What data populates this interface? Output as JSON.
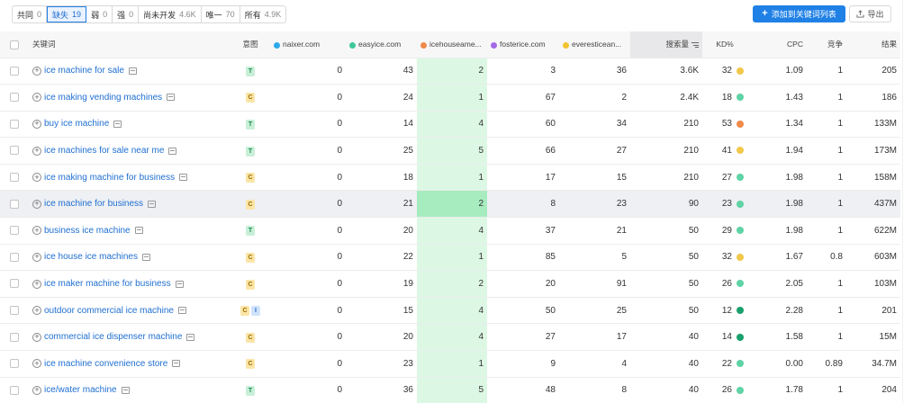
{
  "filters": [
    {
      "label": "共同",
      "count": "0"
    },
    {
      "label": "缺失",
      "count": "19",
      "active": true
    },
    {
      "label": "弱",
      "count": "0"
    },
    {
      "label": "强",
      "count": "0"
    },
    {
      "label": "尚未开发",
      "count": "4.6K"
    },
    {
      "label": "唯一",
      "count": "70"
    },
    {
      "label": "所有",
      "count": "4.9K"
    }
  ],
  "toolbar": {
    "add_label": "添加到关键词列表",
    "export_label": "导出"
  },
  "columns": {
    "keyword": "关键词",
    "intent": "意图",
    "domains": [
      {
        "name": "naixer.com",
        "color": "#2da8e8"
      },
      {
        "name": "easyice.com",
        "color": "#3ec89a"
      },
      {
        "name": "icehouseame...",
        "color": "#f08a4b"
      },
      {
        "name": "fosterice.com",
        "color": "#a46ae8"
      },
      {
        "name": "everesticean...",
        "color": "#f2c230"
      }
    ],
    "volume": "搜索量",
    "kd": "KD%",
    "cpc": "CPC",
    "competition": "竞争",
    "results": "结果"
  },
  "kd_colors": {
    "easy": "#5fd3a5",
    "very_easy": "#1aa06d",
    "possible": "#f2c84b",
    "difficult": "#f08a4b"
  },
  "rows": [
    {
      "keyword": "ice machine for sale",
      "intents": [
        "T"
      ],
      "naixer": "0",
      "easyice": "43",
      "icehouse": "2",
      "fosterice": "3",
      "everest": "36",
      "volume": "3.6K",
      "kd": "32",
      "kd_level": "possible",
      "cpc": "1.09",
      "com": "1",
      "results": "205"
    },
    {
      "keyword": "ice making vending machines",
      "intents": [
        "C"
      ],
      "naixer": "0",
      "easyice": "24",
      "icehouse": "1",
      "fosterice": "67",
      "everest": "2",
      "volume": "2.4K",
      "kd": "18",
      "kd_level": "easy",
      "cpc": "1.43",
      "com": "1",
      "results": "186"
    },
    {
      "keyword": "buy ice machine",
      "intents": [
        "T"
      ],
      "naixer": "0",
      "easyice": "14",
      "icehouse": "4",
      "fosterice": "60",
      "everest": "34",
      "volume": "210",
      "kd": "53",
      "kd_level": "difficult",
      "cpc": "1.34",
      "com": "1",
      "results": "133M"
    },
    {
      "keyword": "ice machines for sale near me",
      "intents": [
        "T"
      ],
      "naixer": "0",
      "easyice": "25",
      "icehouse": "5",
      "fosterice": "66",
      "everest": "27",
      "volume": "210",
      "kd": "41",
      "kd_level": "possible",
      "cpc": "1.94",
      "com": "1",
      "results": "173M"
    },
    {
      "keyword": "ice making machine for business",
      "intents": [
        "C"
      ],
      "naixer": "0",
      "easyice": "18",
      "icehouse": "1",
      "fosterice": "17",
      "everest": "15",
      "volume": "210",
      "kd": "27",
      "kd_level": "easy",
      "cpc": "1.98",
      "com": "1",
      "results": "158M"
    },
    {
      "keyword": "ice machine for business",
      "intents": [
        "C"
      ],
      "naixer": "0",
      "easyice": "21",
      "icehouse": "2",
      "fosterice": "8",
      "everest": "23",
      "volume": "90",
      "kd": "23",
      "kd_level": "easy",
      "cpc": "1.98",
      "com": "1",
      "results": "437M",
      "highlight": true
    },
    {
      "keyword": "business ice machine",
      "intents": [
        "T"
      ],
      "naixer": "0",
      "easyice": "20",
      "icehouse": "4",
      "fosterice": "37",
      "everest": "21",
      "volume": "50",
      "kd": "29",
      "kd_level": "easy",
      "cpc": "1.98",
      "com": "1",
      "results": "622M"
    },
    {
      "keyword": "ice house ice machines",
      "intents": [
        "C"
      ],
      "naixer": "0",
      "easyice": "22",
      "icehouse": "1",
      "fosterice": "85",
      "everest": "5",
      "volume": "50",
      "kd": "32",
      "kd_level": "possible",
      "cpc": "1.67",
      "com": "0.8",
      "results": "603M"
    },
    {
      "keyword": "ice maker machine for business",
      "intents": [
        "C"
      ],
      "naixer": "0",
      "easyice": "19",
      "icehouse": "2",
      "fosterice": "20",
      "everest": "91",
      "volume": "50",
      "kd": "26",
      "kd_level": "easy",
      "cpc": "2.05",
      "com": "1",
      "results": "103M"
    },
    {
      "keyword": "outdoor commercial ice machine",
      "intents": [
        "C",
        "I"
      ],
      "naixer": "0",
      "easyice": "15",
      "icehouse": "4",
      "fosterice": "50",
      "everest": "25",
      "volume": "50",
      "kd": "12",
      "kd_level": "very_easy",
      "cpc": "2.28",
      "com": "1",
      "results": "201"
    },
    {
      "keyword": "commercial ice dispenser machine",
      "intents": [
        "C"
      ],
      "naixer": "0",
      "easyice": "20",
      "icehouse": "4",
      "fosterice": "27",
      "everest": "17",
      "volume": "40",
      "kd": "14",
      "kd_level": "very_easy",
      "cpc": "1.58",
      "com": "1",
      "results": "15M"
    },
    {
      "keyword": "ice machine convenience store",
      "intents": [
        "C"
      ],
      "naixer": "0",
      "easyice": "23",
      "icehouse": "1",
      "fosterice": "9",
      "everest": "4",
      "volume": "40",
      "kd": "22",
      "kd_level": "easy",
      "cpc": "0.00",
      "com": "0.89",
      "results": "34.7M"
    },
    {
      "keyword": "ice/water machine",
      "intents": [
        "T"
      ],
      "naixer": "0",
      "easyice": "36",
      "icehouse": "5",
      "fosterice": "48",
      "everest": "8",
      "volume": "40",
      "kd": "26",
      "kd_level": "easy",
      "cpc": "1.78",
      "com": "1",
      "results": "204"
    }
  ]
}
